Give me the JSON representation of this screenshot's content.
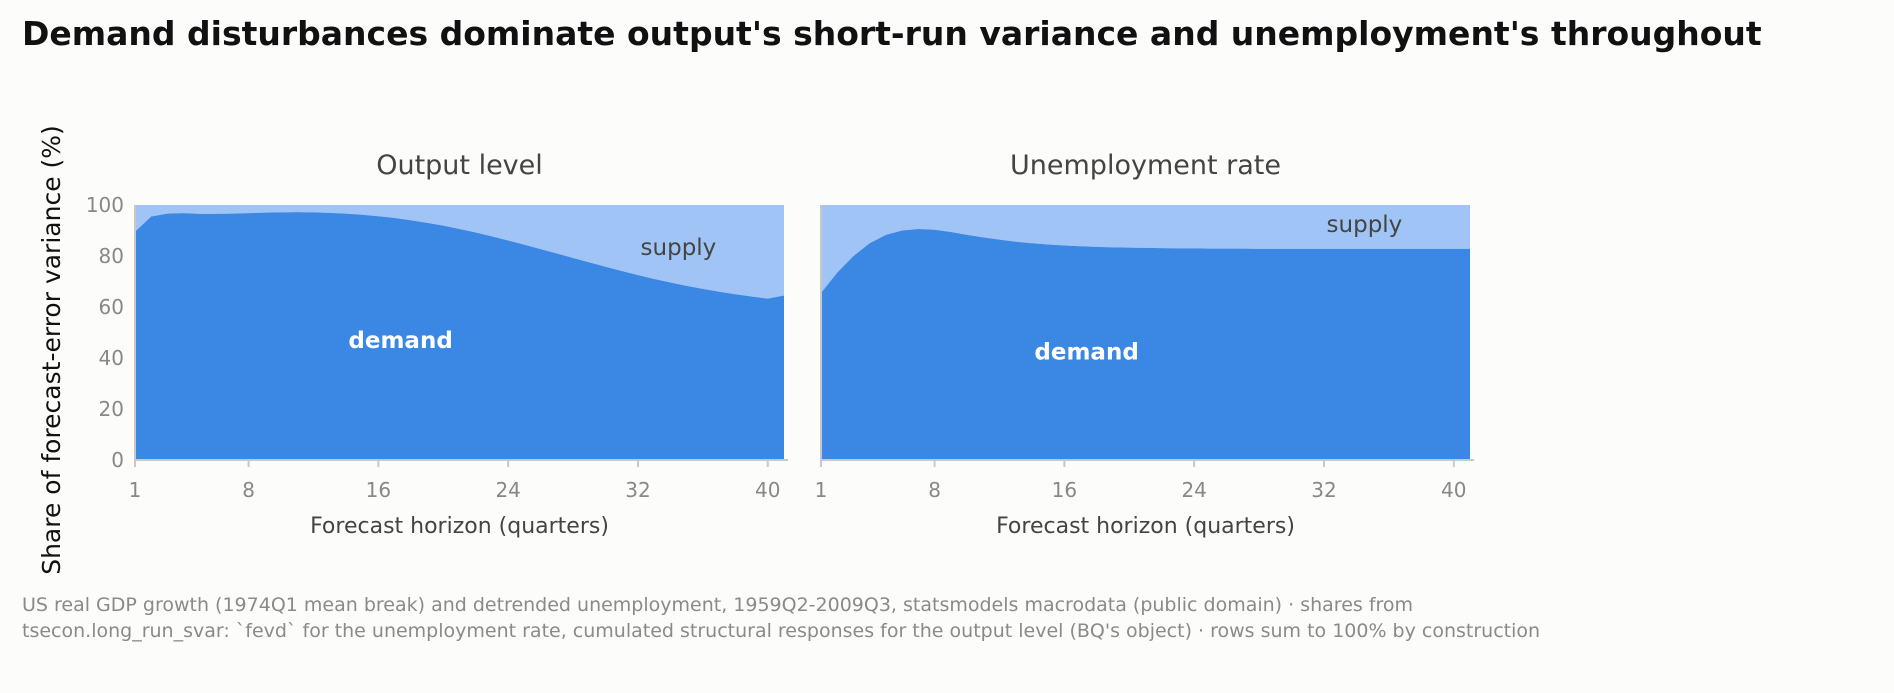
{
  "title": "Demand disturbances dominate output's short-run variance and unemployment's throughout",
  "source": "US real GDP growth (1974Q1 mean break) and detrended unemployment, 1959Q2-2009Q3, statsmodels macrodata (public domain) · shares from tsecon.long_run_svar: `fevd` for the unemployment rate, cumulated structural responses for the output level (BQ's object) · rows sum to 100% by construction",
  "colors": {
    "demand": "#3a87e4",
    "supply": "#a0c4f5",
    "axis": "#c8c8c8"
  },
  "chart_data": {
    "type": "area",
    "stacked": true,
    "ylabel": "Share of forecast-error variance (%)",
    "ylim": [
      0,
      100
    ],
    "yticks": [
      0,
      20,
      40,
      60,
      80,
      100
    ],
    "xlim": [
      1,
      41
    ],
    "xticks": [
      1,
      8,
      16,
      24,
      32,
      40
    ],
    "grid": false,
    "legend": "none",
    "panels": [
      {
        "title": "Output level",
        "xlabel": "Forecast horizon (quarters)",
        "series_labels": {
          "demand": "demand",
          "supply": "supply"
        },
        "x": [
          1,
          2,
          3,
          4,
          5,
          6,
          7,
          8,
          9,
          10,
          11,
          12,
          13,
          14,
          15,
          16,
          17,
          18,
          19,
          20,
          21,
          22,
          23,
          24,
          25,
          26,
          27,
          28,
          29,
          30,
          31,
          32,
          33,
          34,
          35,
          36,
          37,
          38,
          39,
          40,
          41
        ],
        "series": [
          {
            "name": "demand",
            "values": [
              89.5,
              95.5,
              96.6,
              96.8,
              96.5,
              96.5,
              96.6,
              96.8,
              97.0,
              97.1,
              97.2,
              97.1,
              96.9,
              96.6,
              96.2,
              95.6,
              94.9,
              94.0,
              93.0,
              91.9,
              90.6,
              89.2,
              87.7,
              86.1,
              84.4,
              82.7,
              81.0,
              79.2,
              77.5,
              75.8,
              74.1,
              72.5,
              71.0,
              69.6,
              68.3,
              67.1,
              66.0,
              65.0,
              64.1,
              63.3,
              64.5
            ]
          },
          {
            "name": "supply",
            "values": [
              10.5,
              4.5,
              3.4,
              3.2,
              3.5,
              3.5,
              3.4,
              3.2,
              3.0,
              2.9,
              2.8,
              2.9,
              3.1,
              3.4,
              3.8,
              4.4,
              5.1,
              6.0,
              7.0,
              8.1,
              9.4,
              10.8,
              12.3,
              13.9,
              15.6,
              17.3,
              19.0,
              20.8,
              22.5,
              24.2,
              25.9,
              27.5,
              29.0,
              30.4,
              31.7,
              32.9,
              34.0,
              35.0,
              35.9,
              36.7,
              35.5
            ]
          }
        ]
      },
      {
        "title": "Unemployment rate",
        "xlabel": "Forecast horizon (quarters)",
        "series_labels": {
          "demand": "demand",
          "supply": "supply"
        },
        "x": [
          1,
          2,
          3,
          4,
          5,
          6,
          7,
          8,
          9,
          10,
          11,
          12,
          13,
          14,
          15,
          16,
          17,
          18,
          19,
          20,
          21,
          22,
          23,
          24,
          25,
          26,
          27,
          28,
          29,
          30,
          31,
          32,
          33,
          34,
          35,
          36,
          37,
          38,
          39,
          40,
          41
        ],
        "series": [
          {
            "name": "demand",
            "values": [
              65.5,
              73.5,
              80.0,
              85.0,
              88.3,
              90.0,
              90.6,
              90.3,
              89.4,
              88.3,
              87.3,
              86.4,
              85.6,
              85.0,
              84.5,
              84.1,
              83.8,
              83.6,
              83.4,
              83.3,
              83.2,
              83.1,
              83.0,
              83.0,
              82.9,
              82.9,
              82.9,
              82.8,
              82.8,
              82.8,
              82.8,
              82.8,
              82.8,
              82.8,
              82.8,
              82.8,
              82.8,
              82.8,
              82.8,
              82.8,
              82.8
            ]
          },
          {
            "name": "supply",
            "values": [
              34.5,
              26.5,
              20.0,
              15.0,
              11.7,
              10.0,
              9.4,
              9.7,
              10.6,
              11.7,
              12.7,
              13.6,
              14.4,
              15.0,
              15.5,
              15.9,
              16.2,
              16.4,
              16.6,
              16.7,
              16.8,
              16.9,
              17.0,
              17.0,
              17.1,
              17.1,
              17.1,
              17.2,
              17.2,
              17.2,
              17.2,
              17.2,
              17.2,
              17.2,
              17.2,
              17.2,
              17.2,
              17.2,
              17.2,
              17.2,
              17.2
            ]
          }
        ]
      }
    ]
  }
}
